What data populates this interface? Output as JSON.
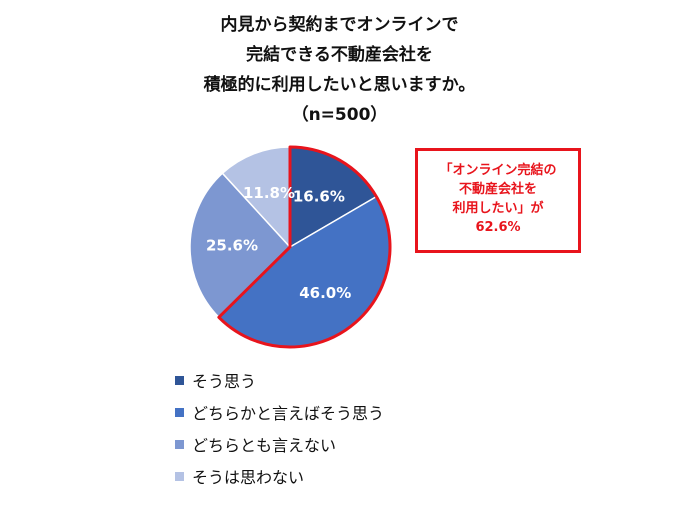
{
  "chart_data": {
    "type": "pie",
    "title": {
      "lines": [
        "内見から契約までオンラインで",
        "完結できる不動産会社を",
        "積極的に利用したいと思いますか。",
        "（n=500）"
      ]
    },
    "slices": [
      {
        "name": "そう思う",
        "value": 16.6,
        "label": "16.6%",
        "color": "#2f5597"
      },
      {
        "name": "どちらかと言えばそう思う",
        "value": 46.0,
        "label": "46.0%",
        "color": "#4472c4"
      },
      {
        "name": "どちらとも言えない",
        "value": 25.6,
        "label": "25.6%",
        "color": "#7d97d1"
      },
      {
        "name": "そうは思わない",
        "value": 11.8,
        "label": "11.8%",
        "color": "#b4c2e4"
      }
    ],
    "start_angle_deg": 0,
    "direction": "clockwise",
    "highlight": {
      "slices": [
        0,
        1
      ],
      "stroke_color": "#e8141c"
    },
    "callout": {
      "lines": [
        "「オンライン完結の",
        "不動産会社を",
        "利用したい」が",
        "62.6%"
      ],
      "color": "#e8141c"
    },
    "legend_position": "bottom-left"
  }
}
